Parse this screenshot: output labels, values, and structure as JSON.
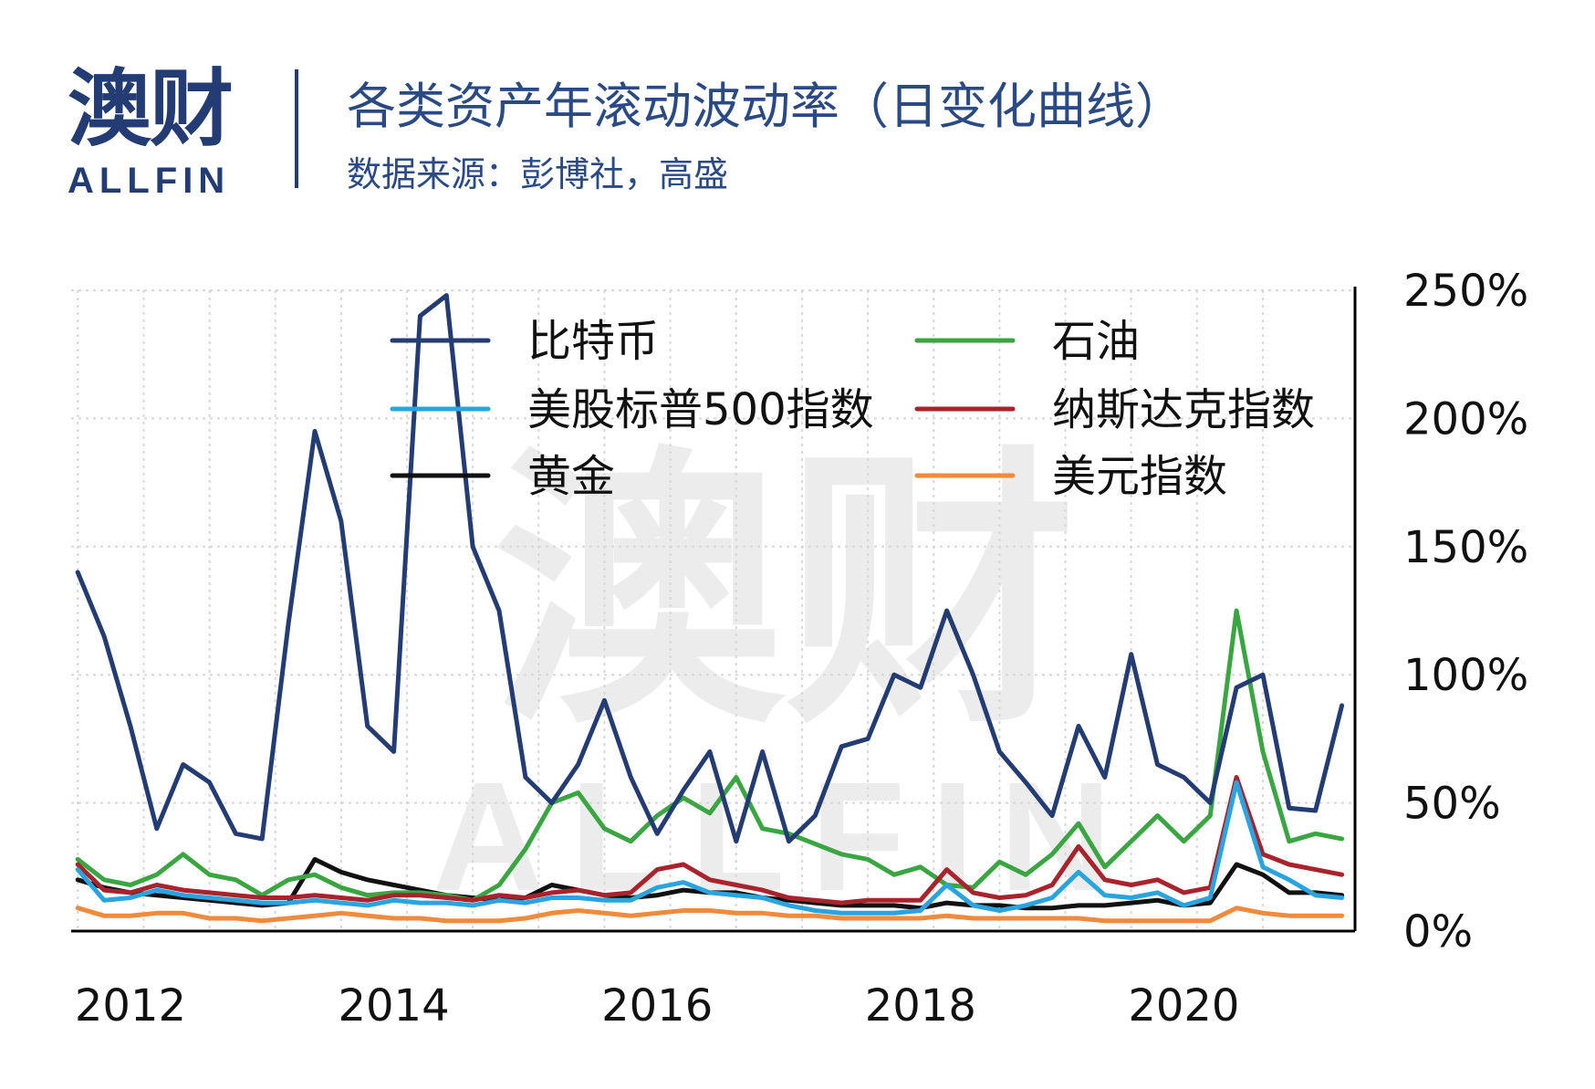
{
  "brand": {
    "name_cn": "澳财",
    "name_en": "ALLFIN"
  },
  "header": {
    "title": "各类资产年滚动波动率（日变化曲线）",
    "subtitle": "数据来源：彭博社，高盛"
  },
  "chart_data": {
    "type": "line",
    "title": "各类资产年滚动波动率（日变化曲线）",
    "xlabel": "",
    "ylabel": "",
    "x_ticks": [
      "2012",
      "2014",
      "2016",
      "2018",
      "2020"
    ],
    "y_ticks": [
      "0%",
      "50%",
      "100%",
      "150%",
      "200%",
      "250%"
    ],
    "xlim": [
      2011.55,
      2021.3
    ],
    "ylim": [
      0,
      250
    ],
    "grid": true,
    "legend_position": "top",
    "x": [
      2011.6,
      2011.8,
      2012.0,
      2012.2,
      2012.4,
      2012.6,
      2012.8,
      2013.0,
      2013.2,
      2013.4,
      2013.6,
      2013.8,
      2014.0,
      2014.2,
      2014.4,
      2014.6,
      2014.8,
      2015.0,
      2015.2,
      2015.4,
      2015.6,
      2015.8,
      2016.0,
      2016.2,
      2016.4,
      2016.6,
      2016.8,
      2017.0,
      2017.2,
      2017.4,
      2017.6,
      2017.8,
      2018.0,
      2018.2,
      2018.4,
      2018.6,
      2018.8,
      2019.0,
      2019.2,
      2019.4,
      2019.6,
      2019.8,
      2020.0,
      2020.2,
      2020.4,
      2020.6,
      2020.8,
      2021.0,
      2021.2
    ],
    "series": [
      {
        "name": "比特币",
        "color": "#233c73",
        "values": [
          140,
          115,
          80,
          40,
          65,
          58,
          38,
          36,
          120,
          195,
          160,
          80,
          70,
          240,
          248,
          150,
          125,
          60,
          50,
          65,
          90,
          60,
          38,
          55,
          70,
          35,
          70,
          35,
          45,
          72,
          75,
          100,
          95,
          125,
          100,
          70,
          58,
          45,
          80,
          60,
          108,
          65,
          60,
          50,
          95,
          100,
          48,
          47,
          88
        ]
      },
      {
        "name": "石油",
        "color": "#3aa641",
        "values": [
          28,
          20,
          18,
          22,
          30,
          22,
          20,
          14,
          20,
          22,
          17,
          14,
          15,
          15,
          14,
          12,
          18,
          32,
          50,
          54,
          40,
          35,
          45,
          52,
          46,
          60,
          40,
          38,
          34,
          30,
          28,
          22,
          25,
          18,
          17,
          27,
          22,
          30,
          42,
          25,
          35,
          45,
          35,
          45,
          125,
          70,
          35,
          38,
          36
        ]
      },
      {
        "name": "美股标普500指数",
        "color": "#2aa4e0",
        "values": [
          24,
          12,
          13,
          16,
          14,
          13,
          12,
          11,
          11,
          12,
          11,
          10,
          12,
          11,
          11,
          10,
          12,
          11,
          13,
          13,
          12,
          12,
          17,
          19,
          15,
          14,
          13,
          10,
          8,
          7,
          7,
          7,
          8,
          18,
          10,
          8,
          10,
          13,
          23,
          14,
          13,
          15,
          10,
          13,
          58,
          25,
          20,
          14,
          13
        ]
      },
      {
        "name": "纳斯达克指数",
        "color": "#a8232b",
        "values": [
          26,
          16,
          15,
          18,
          16,
          15,
          14,
          13,
          13,
          14,
          13,
          12,
          14,
          14,
          13,
          12,
          14,
          13,
          15,
          16,
          14,
          15,
          24,
          26,
          20,
          18,
          16,
          13,
          12,
          11,
          12,
          12,
          12,
          24,
          15,
          13,
          14,
          18,
          33,
          20,
          18,
          20,
          15,
          17,
          60,
          30,
          26,
          24,
          22
        ]
      },
      {
        "name": "黄金",
        "color": "#111111",
        "values": [
          20,
          17,
          15,
          14,
          13,
          12,
          11,
          10,
          11,
          28,
          23,
          20,
          18,
          16,
          14,
          13,
          12,
          13,
          18,
          16,
          14,
          13,
          14,
          16,
          15,
          15,
          13,
          12,
          11,
          10,
          10,
          10,
          9,
          11,
          10,
          10,
          9,
          9,
          10,
          10,
          11,
          12,
          10,
          11,
          26,
          22,
          15,
          15,
          14
        ]
      },
      {
        "name": "美元指数",
        "color": "#f08a3c",
        "values": [
          9,
          6,
          6,
          7,
          7,
          5,
          5,
          4,
          5,
          6,
          7,
          6,
          5,
          5,
          4,
          4,
          4,
          5,
          7,
          8,
          7,
          6,
          7,
          8,
          8,
          7,
          7,
          6,
          6,
          5,
          5,
          5,
          5,
          6,
          5,
          5,
          5,
          5,
          5,
          4,
          4,
          4,
          4,
          4,
          9,
          7,
          6,
          6,
          6
        ]
      }
    ]
  },
  "legend": {
    "items": [
      {
        "label": "比特币",
        "color": "#233c73"
      },
      {
        "label": "石油",
        "color": "#3aa641"
      },
      {
        "label": "美股标普500指数",
        "color": "#2aa4e0"
      },
      {
        "label": "纳斯达克指数",
        "color": "#a8232b"
      },
      {
        "label": "黄金",
        "color": "#111111"
      },
      {
        "label": "美元指数",
        "color": "#f08a3c"
      }
    ]
  }
}
